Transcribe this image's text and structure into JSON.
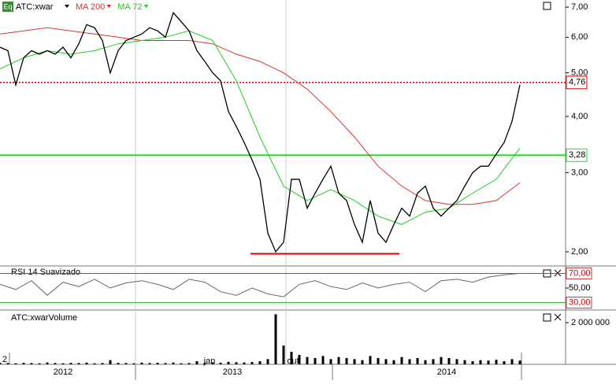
{
  "chart_data": {
    "type": "stock",
    "symbol": "ATC:xwar",
    "badge": "Eq",
    "log_scale": true,
    "price": {
      "name": "ATC:xwar",
      "color": "#000000",
      "values": [
        5.7,
        5.6,
        4.7,
        5.4,
        5.6,
        5.5,
        5.6,
        5.5,
        5.7,
        5.4,
        5.8,
        6.4,
        6.3,
        5.9,
        5.0,
        5.6,
        5.9,
        6.0,
        6.1,
        6.3,
        6.2,
        6.0,
        6.8,
        6.5,
        6.2,
        5.6,
        5.3,
        5.0,
        4.8,
        4.1,
        3.8,
        3.5,
        3.2,
        2.9,
        2.2,
        2.0,
        2.1,
        2.9,
        2.9,
        2.5,
        2.7,
        2.9,
        3.1,
        2.7,
        2.6,
        2.3,
        2.1,
        2.6,
        2.2,
        2.1,
        2.3,
        2.5,
        2.4,
        2.7,
        2.8,
        2.5,
        2.4,
        2.5,
        2.6,
        2.8,
        3.0,
        3.1,
        3.1,
        3.3,
        3.5,
        3.9,
        4.7
      ]
    },
    "series": [
      {
        "name": "MA 200",
        "color": "#e03030",
        "values": [
          6.1,
          6.2,
          6.3,
          6.2,
          6.1,
          6.0,
          5.9,
          5.9,
          5.9,
          5.8,
          5.5,
          5.3,
          5.0,
          4.6,
          4.1,
          3.6,
          3.1,
          2.8,
          2.6,
          2.55,
          2.55,
          2.6,
          2.85
        ]
      },
      {
        "name": "MA 72",
        "color": "#22cc22",
        "values": [
          5.1,
          5.4,
          5.6,
          5.5,
          5.6,
          5.8,
          5.9,
          6.0,
          6.2,
          5.9,
          4.8,
          3.6,
          2.8,
          2.6,
          2.75,
          2.6,
          2.4,
          2.3,
          2.45,
          2.5,
          2.7,
          2.9,
          3.4
        ]
      }
    ],
    "ylim": [
      1.86,
      7.26
    ],
    "yticks": [
      {
        "value": 7,
        "label": "7,00"
      },
      {
        "value": 6,
        "label": "6,00"
      },
      {
        "value": 5,
        "label": "5,00"
      },
      {
        "value": 4,
        "label": "4,00"
      },
      {
        "value": 3,
        "label": "3,00"
      },
      {
        "value": 2,
        "label": "2,00"
      }
    ],
    "hlines": [
      {
        "value": 4.76,
        "label": "4,76",
        "color": "#cc0000"
      },
      {
        "value": 3.28,
        "label": "3,28",
        "color": "#22dd22"
      }
    ],
    "support_line": 1.98,
    "rsi": {
      "title": "RSI 14 Suavizado",
      "color": "#666666",
      "values": [
        55,
        48,
        60,
        40,
        58,
        52,
        62,
        50,
        57,
        60,
        55,
        48,
        62,
        58,
        45,
        40,
        50,
        42,
        38,
        55,
        60,
        52,
        48,
        57,
        50,
        55,
        58,
        45,
        60,
        62,
        58,
        65,
        68,
        70
      ],
      "ylim": [
        21,
        78
      ],
      "yticks": [
        {
          "value": 70,
          "label": "70,00"
        },
        {
          "value": 50,
          "label": "50,00"
        },
        {
          "value": 30,
          "label": "30,00"
        }
      ]
    },
    "volume": {
      "title": "ATC:xwarVolume",
      "color": "#000000",
      "values": [
        80000,
        60000,
        50000,
        70000,
        60000,
        50000,
        90000,
        60000,
        50000,
        70000,
        60000,
        80000,
        50000,
        60000,
        200000,
        70000,
        60000,
        50000,
        80000,
        60000,
        70000,
        60000,
        90000,
        50000,
        60000,
        150000,
        70000,
        90000,
        80000,
        120000,
        100000,
        90000,
        110000,
        150000,
        250000,
        2400000,
        900000,
        600000,
        450000,
        350000,
        300000,
        400000,
        250000,
        350000,
        300000,
        250000,
        200000,
        400000,
        300000,
        250000,
        200000,
        350000,
        250000,
        300000,
        200000,
        250000,
        350000,
        300000,
        250000,
        200000,
        150000,
        200000,
        180000,
        220000,
        150000,
        250000,
        180000
      ],
      "ylim": [
        0,
        2530000
      ],
      "yticks": [
        {
          "value": 2000000,
          "label": "2 000 000"
        }
      ]
    },
    "x_labels": [
      "2",
      "2012",
      "jan",
      "2013",
      "out",
      "2014"
    ]
  }
}
